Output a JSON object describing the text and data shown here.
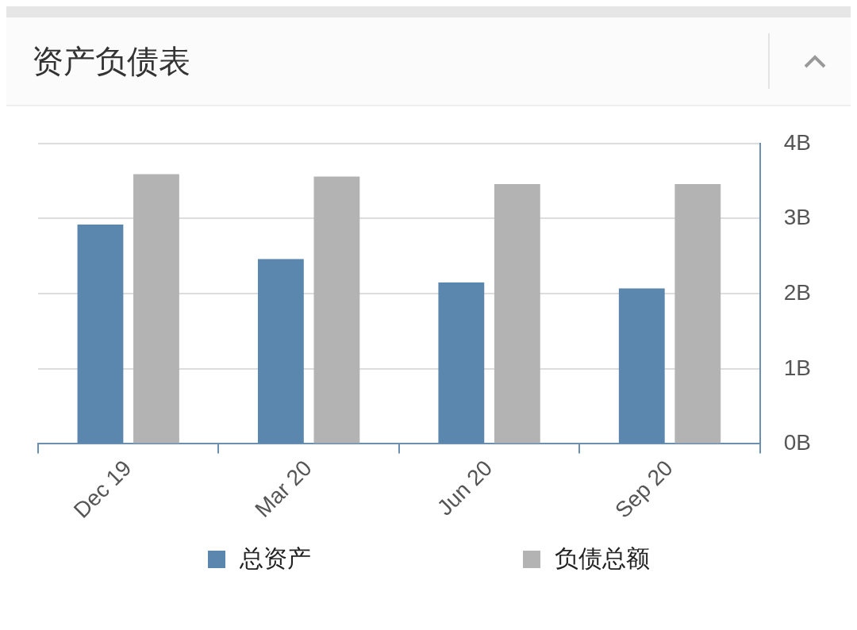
{
  "chart_data": {
    "type": "bar",
    "title": "资产负债表",
    "categories": [
      "Dec 19",
      "Mar 20",
      "Jun 20",
      "Sep 20"
    ],
    "series": [
      {
        "name": "总资产",
        "color": "#5b87ae",
        "values": [
          2.92,
          2.46,
          2.15,
          2.07
        ]
      },
      {
        "name": "负债总额",
        "color": "#b3b3b3",
        "values": [
          3.59,
          3.56,
          3.46,
          3.46
        ]
      }
    ],
    "ylim": [
      0,
      4
    ],
    "yticks": [
      {
        "value": 0,
        "label": "0B"
      },
      {
        "value": 1,
        "label": "1B"
      },
      {
        "value": 2,
        "label": "2B"
      },
      {
        "value": 3,
        "label": "3B"
      },
      {
        "value": 4,
        "label": "4B"
      }
    ],
    "grid": "y",
    "legend": "bottom"
  }
}
